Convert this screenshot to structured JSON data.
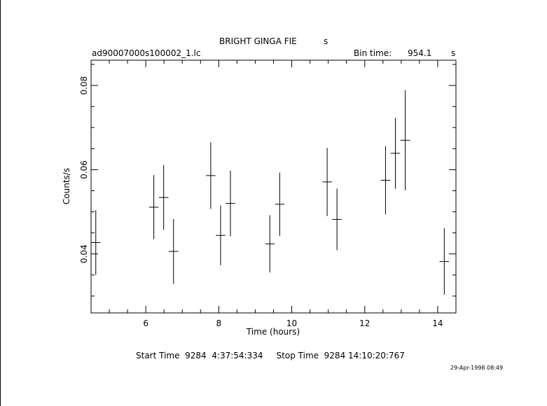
{
  "header": {
    "title": "BRIGHT GINGA FIE",
    "title_suffix": "s",
    "filename": "ad90007000s100002_1.lc",
    "bin_label": "Bin time:",
    "bin_value": "954.1",
    "bin_unit": "s"
  },
  "footer": {
    "times": "Start Time  9284  4:37:54:334     Stop Time  9284 14:10:20:767",
    "timestamp": "29-Apr-1998 08:49"
  },
  "chart_data": {
    "type": "scatter",
    "title": "BRIGHT GINGA FIE",
    "xlabel": "Time (hours)",
    "ylabel": "Counts/s",
    "xlim": [
      4.5,
      14.5
    ],
    "ylim": [
      0.026,
      0.086
    ],
    "xticks": [
      6,
      8,
      10,
      12,
      14
    ],
    "yticks": [
      0.04,
      0.06,
      0.08
    ],
    "x_minor_step": 0.5,
    "y_minor_step": 0.005,
    "grid": false,
    "points": [
      {
        "x": 4.63,
        "y": 0.0427,
        "xerr": 0.13,
        "yerr": 0.0077
      },
      {
        "x": 6.22,
        "y": 0.0511,
        "xerr": 0.13,
        "yerr": 0.0076
      },
      {
        "x": 6.49,
        "y": 0.0534,
        "xerr": 0.13,
        "yerr": 0.0077
      },
      {
        "x": 6.76,
        "y": 0.0406,
        "xerr": 0.13,
        "yerr": 0.0077
      },
      {
        "x": 7.78,
        "y": 0.0586,
        "xerr": 0.13,
        "yerr": 0.0079
      },
      {
        "x": 8.05,
        "y": 0.0444,
        "xerr": 0.13,
        "yerr": 0.0071
      },
      {
        "x": 8.32,
        "y": 0.052,
        "xerr": 0.13,
        "yerr": 0.0078
      },
      {
        "x": 9.4,
        "y": 0.0424,
        "xerr": 0.13,
        "yerr": 0.0068
      },
      {
        "x": 9.67,
        "y": 0.0518,
        "xerr": 0.13,
        "yerr": 0.0075
      },
      {
        "x": 10.97,
        "y": 0.0571,
        "xerr": 0.13,
        "yerr": 0.0081
      },
      {
        "x": 11.24,
        "y": 0.0482,
        "xerr": 0.13,
        "yerr": 0.0073
      },
      {
        "x": 12.57,
        "y": 0.0575,
        "xerr": 0.13,
        "yerr": 0.0081
      },
      {
        "x": 12.84,
        "y": 0.0639,
        "xerr": 0.13,
        "yerr": 0.0084
      },
      {
        "x": 13.11,
        "y": 0.067,
        "xerr": 0.13,
        "yerr": 0.0119
      },
      {
        "x": 14.18,
        "y": 0.0382,
        "xerr": 0.13,
        "yerr": 0.0079
      }
    ]
  }
}
